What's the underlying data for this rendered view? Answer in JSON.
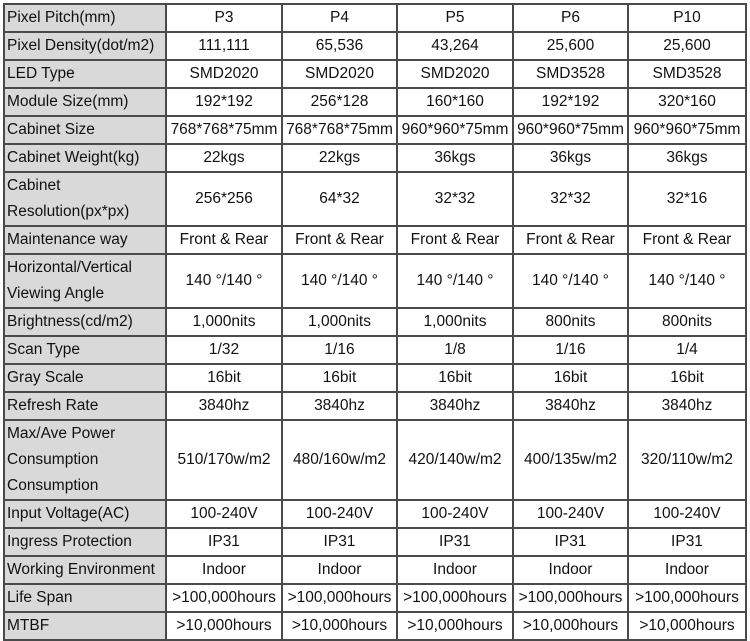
{
  "columns": [
    "P3",
    "P4",
    "P5",
    "P6",
    "P10"
  ],
  "header_label": "Pixel Pitch(mm)",
  "rows": [
    {
      "label": "Pixel Density(dot/m2)",
      "values": [
        "111,111",
        "65,536",
        "43,264",
        "25,600",
        "25,600"
      ]
    },
    {
      "label": "LED Type",
      "values": [
        "SMD2020",
        "SMD2020",
        "SMD2020",
        "SMD3528",
        "SMD3528"
      ]
    },
    {
      "label": "Module Size(mm)",
      "values": [
        "192*192",
        "256*128",
        "160*160",
        "192*192",
        "320*160"
      ]
    },
    {
      "label": "Cabinet Size",
      "values": [
        "768*768*75mm",
        "768*768*75mm",
        "960*960*75mm",
        "960*960*75mm",
        "960*960*75mm"
      ]
    },
    {
      "label": "Cabinet Weight(kg)",
      "values": [
        "22kgs",
        "22kgs",
        "36kgs",
        "36kgs",
        "36kgs"
      ]
    },
    {
      "label": "Cabinet Resolution(px*px)",
      "values": [
        "256*256",
        "64*32",
        "32*32",
        "32*32",
        "32*16"
      ]
    },
    {
      "label": "Maintenance way",
      "values": [
        "Front & Rear",
        "Front & Rear",
        "Front & Rear",
        "Front & Rear",
        "Front & Rear"
      ]
    },
    {
      "label": "Horizontal/Vertical Viewing Angle",
      "values": [
        "140 °/140 °",
        "140 °/140 °",
        "140 °/140 °",
        "140 °/140 °",
        "140 °/140 °"
      ]
    },
    {
      "label": "Brightness(cd/m2)",
      "values": [
        "1,000nits",
        "1,000nits",
        "1,000nits",
        "800nits",
        "800nits"
      ]
    },
    {
      "label": "Scan Type",
      "values": [
        "1/32",
        "1/16",
        "1/8",
        "1/16",
        "1/4"
      ]
    },
    {
      "label": "Gray Scale",
      "values": [
        "16bit",
        "16bit",
        "16bit",
        "16bit",
        "16bit"
      ]
    },
    {
      "label": "Refresh Rate",
      "values": [
        "3840hz",
        "3840hz",
        "3840hz",
        "3840hz",
        "3840hz"
      ]
    },
    {
      "label": "Max/Ave Power Consumption Consumption",
      "values": [
        "510/170w/m2",
        "480/160w/m2",
        "420/140w/m2",
        "400/135w/m2",
        "320/110w/m2"
      ]
    },
    {
      "label": "Input Voltage(AC)",
      "values": [
        "100-240V",
        "100-240V",
        "100-240V",
        "100-240V",
        "100-240V"
      ]
    },
    {
      "label": "Ingress Protection",
      "values": [
        "IP31",
        "IP31",
        "IP31",
        "IP31",
        "IP31"
      ]
    },
    {
      "label": "Working Environment",
      "values": [
        "Indoor",
        "Indoor",
        "Indoor",
        "Indoor",
        "Indoor"
      ]
    },
    {
      "label": "Life Span",
      "values": [
        ">100,000hours",
        ">100,000hours",
        ">100,000hours",
        ">100,000hours",
        ">100,000hours"
      ]
    },
    {
      "label": "MTBF",
      "values": [
        ">10,000hours",
        ">10,000hours",
        ">10,000hours",
        ">10,000hours",
        ">10,000hours"
      ]
    }
  ]
}
